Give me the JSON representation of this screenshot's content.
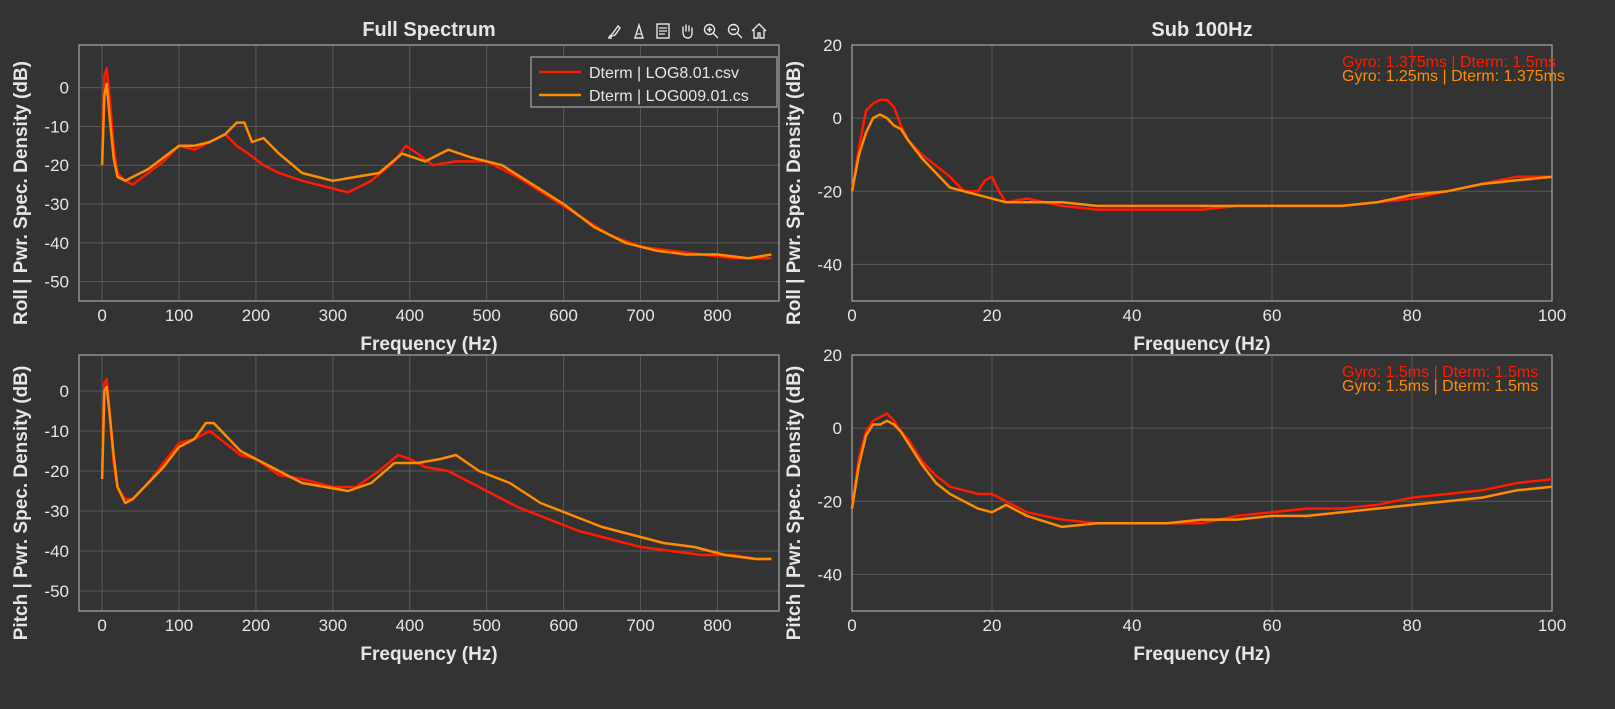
{
  "colors": {
    "background": "#333333",
    "axes_bg": "#333333",
    "text": "#e6e6e6",
    "grid": "#5a5a5a",
    "series_red": "#ff1a00",
    "series_orange": "#ff8c00"
  },
  "toolbar": {
    "icons": [
      "brush-icon",
      "data-tips-icon",
      "legend-icon",
      "pan-icon",
      "zoom-in-icon",
      "zoom-out-icon",
      "home-icon"
    ]
  },
  "column_titles": {
    "left": "Full Spectrum",
    "right": "Sub 100Hz"
  },
  "chart_data": [
    {
      "type": "line",
      "panel": "full-roll",
      "title": "Full Spectrum",
      "xlabel": "Frequency (Hz)",
      "ylabel": "Roll  |  Pwr. Spec. Density (dB)",
      "xlim": [
        -30,
        880
      ],
      "ylim": [
        -55,
        11
      ],
      "xticks": [
        0,
        100,
        200,
        300,
        400,
        500,
        600,
        700,
        800
      ],
      "yticks": [
        0,
        -10,
        -20,
        -30,
        -40,
        -50
      ],
      "grid": true,
      "legend_position": "top-right",
      "series": [
        {
          "name": "Dterm | LOG8.01.csv",
          "color": "#ff1a00",
          "x": [
            0,
            3,
            6,
            10,
            15,
            20,
            30,
            40,
            60,
            80,
            100,
            120,
            140,
            160,
            175,
            190,
            210,
            230,
            260,
            300,
            320,
            350,
            380,
            395,
            410,
            430,
            460,
            500,
            540,
            580,
            620,
            660,
            700,
            740,
            780,
            820,
            850,
            870
          ],
          "y": [
            -18,
            3,
            5,
            -3,
            -15,
            -22,
            -24,
            -25,
            -22,
            -19,
            -15,
            -16,
            -14,
            -12,
            -15,
            -17,
            -20,
            -22,
            -24,
            -26,
            -27,
            -24,
            -19,
            -15,
            -17,
            -20,
            -19,
            -19,
            -23,
            -28,
            -33,
            -38,
            -41,
            -42,
            -43,
            -44,
            -44,
            -44
          ]
        },
        {
          "name": "Dterm | LOG009.01.cs",
          "color": "#ff8c00",
          "x": [
            0,
            3,
            6,
            10,
            15,
            20,
            30,
            40,
            60,
            80,
            100,
            120,
            140,
            160,
            175,
            185,
            195,
            210,
            230,
            260,
            300,
            330,
            360,
            390,
            420,
            450,
            480,
            520,
            560,
            600,
            640,
            680,
            720,
            760,
            800,
            840,
            870
          ],
          "y": [
            -20,
            -2,
            1,
            -8,
            -18,
            -23,
            -24,
            -23,
            -21,
            -18,
            -15,
            -15,
            -14,
            -12,
            -9,
            -9,
            -14,
            -13,
            -17,
            -22,
            -24,
            -23,
            -22,
            -17,
            -19,
            -16,
            -18,
            -20,
            -25,
            -30,
            -36,
            -40,
            -42,
            -43,
            -43,
            -44,
            -43
          ]
        }
      ]
    },
    {
      "type": "line",
      "panel": "sub100-roll",
      "title": "Sub 100Hz",
      "xlabel": "Frequency (Hz)",
      "ylabel": "Roll  |  Pwr. Spec. Density (dB)",
      "xlim": [
        0,
        100
      ],
      "ylim": [
        -50,
        20
      ],
      "xticks": [
        0,
        20,
        40,
        60,
        80,
        100
      ],
      "yticks": [
        20,
        0,
        -20,
        -40
      ],
      "grid": true,
      "annotations": [
        {
          "text": "Gyro: 1.375ms | Dterm: 1.5ms",
          "color": "#ff1a00"
        },
        {
          "text": "Gyro: 1.25ms | Dterm: 1.375ms",
          "color": "#ff8c00"
        }
      ],
      "series": [
        {
          "color": "#ff1a00",
          "x": [
            0,
            1,
            2,
            3,
            4,
            5,
            6,
            7,
            8,
            10,
            12,
            14,
            16,
            18,
            19,
            20,
            21,
            22,
            25,
            30,
            35,
            40,
            45,
            50,
            55,
            60,
            65,
            70,
            75,
            80,
            85,
            90,
            95,
            100
          ],
          "y": [
            -20,
            -8,
            2,
            4,
            5,
            5,
            3,
            -2,
            -6,
            -10,
            -13,
            -16,
            -20,
            -20,
            -17,
            -16,
            -20,
            -23,
            -22,
            -24,
            -25,
            -25,
            -25,
            -25,
            -24,
            -24,
            -24,
            -24,
            -23,
            -22,
            -20,
            -18,
            -16,
            -16
          ]
        },
        {
          "color": "#ff8c00",
          "x": [
            0,
            1,
            2,
            3,
            4,
            5,
            6,
            7,
            8,
            10,
            12,
            14,
            16,
            18,
            20,
            22,
            25,
            30,
            35,
            40,
            45,
            50,
            55,
            60,
            65,
            70,
            75,
            80,
            85,
            90,
            95,
            100
          ],
          "y": [
            -20,
            -10,
            -4,
            0,
            1,
            0,
            -2,
            -3,
            -6,
            -11,
            -15,
            -19,
            -20,
            -21,
            -22,
            -23,
            -23,
            -23,
            -24,
            -24,
            -24,
            -24,
            -24,
            -24,
            -24,
            -24,
            -23,
            -21,
            -20,
            -18,
            -17,
            -16
          ]
        }
      ]
    },
    {
      "type": "line",
      "panel": "full-pitch",
      "xlabel": "Frequency (Hz)",
      "ylabel": "Pitch  |  Pwr. Spec. Density (dB)",
      "xlim": [
        -30,
        880
      ],
      "ylim": [
        -55,
        9
      ],
      "xticks": [
        0,
        100,
        200,
        300,
        400,
        500,
        600,
        700,
        800
      ],
      "yticks": [
        0,
        -10,
        -20,
        -30,
        -40,
        -50
      ],
      "grid": true,
      "series": [
        {
          "color": "#ff1a00",
          "x": [
            0,
            3,
            6,
            10,
            15,
            20,
            30,
            40,
            60,
            80,
            100,
            120,
            140,
            160,
            180,
            200,
            230,
            260,
            300,
            330,
            360,
            385,
            400,
            420,
            450,
            500,
            540,
            580,
            620,
            660,
            700,
            740,
            780,
            820,
            850,
            870
          ],
          "y": [
            -20,
            2,
            3,
            -6,
            -18,
            -24,
            -27,
            -27,
            -23,
            -18,
            -13,
            -12,
            -10,
            -13,
            -16,
            -17,
            -21,
            -22,
            -24,
            -24,
            -20,
            -16,
            -17,
            -19,
            -20,
            -25,
            -29,
            -32,
            -35,
            -37,
            -39,
            -40,
            -41,
            -41,
            -42,
            -42
          ]
        },
        {
          "color": "#ff8c00",
          "x": [
            0,
            3,
            6,
            10,
            15,
            20,
            30,
            40,
            60,
            80,
            100,
            120,
            135,
            145,
            160,
            180,
            200,
            230,
            260,
            290,
            320,
            350,
            380,
            410,
            440,
            460,
            490,
            530,
            570,
            610,
            650,
            690,
            730,
            770,
            810,
            850,
            870
          ],
          "y": [
            -22,
            0,
            1,
            -6,
            -16,
            -24,
            -28,
            -27,
            -23,
            -19,
            -14,
            -12,
            -8,
            -8,
            -11,
            -15,
            -17,
            -20,
            -23,
            -24,
            -25,
            -23,
            -18,
            -18,
            -17,
            -16,
            -20,
            -23,
            -28,
            -31,
            -34,
            -36,
            -38,
            -39,
            -41,
            -42,
            -42
          ]
        }
      ]
    },
    {
      "type": "line",
      "panel": "sub100-pitch",
      "xlabel": "Frequency (Hz)",
      "ylabel": "Pitch  |  Pwr. Spec. Density (dB)",
      "xlim": [
        0,
        100
      ],
      "ylim": [
        -50,
        20
      ],
      "xticks": [
        0,
        20,
        40,
        60,
        80,
        100
      ],
      "yticks": [
        20,
        0,
        -20,
        -40
      ],
      "grid": true,
      "annotations": [
        {
          "text": "Gyro: 1.5ms | Dterm: 1.5ms",
          "color": "#ff1a00"
        },
        {
          "text": "Gyro: 1.5ms | Dterm: 1.5ms",
          "color": "#ff8c00"
        }
      ],
      "series": [
        {
          "color": "#ff1a00",
          "x": [
            0,
            1,
            2,
            3,
            4,
            5,
            6,
            7,
            8,
            10,
            12,
            14,
            16,
            18,
            20,
            22,
            25,
            30,
            35,
            40,
            45,
            50,
            55,
            60,
            65,
            70,
            75,
            80,
            85,
            90,
            95,
            100
          ],
          "y": [
            -22,
            -8,
            -1,
            2,
            3,
            4,
            2,
            -1,
            -3,
            -9,
            -13,
            -16,
            -17,
            -18,
            -18,
            -20,
            -23,
            -25,
            -26,
            -26,
            -26,
            -26,
            -24,
            -23,
            -22,
            -22,
            -21,
            -19,
            -18,
            -17,
            -15,
            -14
          ]
        },
        {
          "color": "#ff8c00",
          "x": [
            0,
            1,
            2,
            3,
            4,
            5,
            6,
            7,
            8,
            10,
            12,
            14,
            16,
            18,
            20,
            22,
            25,
            30,
            35,
            40,
            45,
            50,
            55,
            60,
            65,
            70,
            75,
            80,
            85,
            90,
            95,
            100
          ],
          "y": [
            -22,
            -10,
            -2,
            1,
            1,
            2,
            1,
            -1,
            -4,
            -10,
            -15,
            -18,
            -20,
            -22,
            -23,
            -21,
            -24,
            -27,
            -26,
            -26,
            -26,
            -25,
            -25,
            -24,
            -24,
            -23,
            -22,
            -21,
            -20,
            -19,
            -17,
            -16
          ]
        }
      ]
    }
  ]
}
